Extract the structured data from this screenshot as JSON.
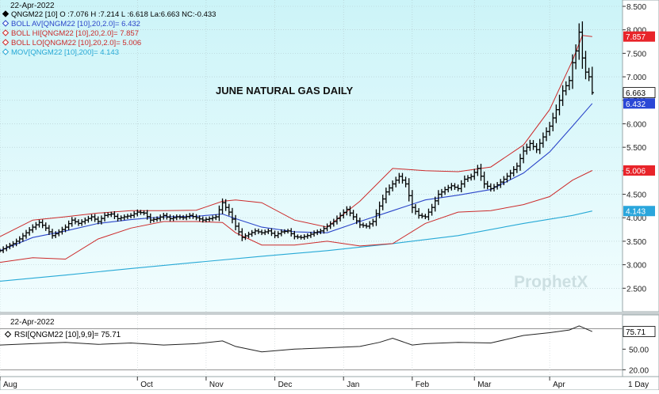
{
  "chart_data": [
    {
      "type": "candlestick",
      "title": "JUNE NATURAL GAS DAILY",
      "date": "22-Apr-2022",
      "quote": {
        "label": "QNGM22 [10] O :7.076 H :7.214 L :6.618 La:6.663 NC:-0.433",
        "open": 7.076,
        "high": 7.214,
        "low": 6.618,
        "last": 6.663,
        "net_change": -0.433
      },
      "legend": [
        {
          "name": "QNGM22 [10] O :7.076 H :7.214 L :6.618 La:6.663 NC:-0.433",
          "color": "#000000",
          "marker": "diamond-filled"
        },
        {
          "name": "BOLL AV[QNGM22 [10],20,2.0]= 6.432",
          "color": "#2b45c9",
          "marker": "diamond-open"
        },
        {
          "name": "BOLL HI[QNGM22 [10],20,2.0]= 7.857",
          "color": "#cc2a2a",
          "marker": "diamond-open"
        },
        {
          "name": "BOLL LO[QNGM22 [10],20,2.0]= 5.006",
          "color": "#cc2a2a",
          "marker": "diamond-open"
        },
        {
          "name": "MOV[QNGM22 [10],200]= 4.143",
          "color": "#26a9d6",
          "marker": "diamond-open"
        }
      ],
      "ylim": [
        2.0,
        8.5
      ],
      "yticks": [
        "8.500",
        "8.000",
        "7.500",
        "7.000",
        "6.500",
        "6.000",
        "5.500",
        "5.000",
        "4.500",
        "4.000",
        "3.500",
        "3.000",
        "2.500"
      ],
      "price_tags": [
        {
          "label": "7.857",
          "value": 7.857,
          "color": "#e8242a"
        },
        {
          "label": "6.663",
          "value": 6.663,
          "color": "#ffffff"
        },
        {
          "label": "6.432",
          "value": 6.432,
          "color": "#2a47d6"
        },
        {
          "label": "5.006",
          "value": 5.006,
          "color": "#e8242a"
        },
        {
          "label": "4.143",
          "value": 4.143,
          "color": "#2aa6dc"
        }
      ],
      "x_months": [
        {
          "label": "Aug",
          "x": 0
        },
        {
          "label": "Oct",
          "x": 42
        },
        {
          "label": "Nov",
          "x": 63
        },
        {
          "label": "Dec",
          "x": 84
        },
        {
          "label": "Jan",
          "x": 105
        },
        {
          "label": "Feb",
          "x": 126
        },
        {
          "label": "Mar",
          "x": 145
        },
        {
          "label": "Apr",
          "x": 168
        }
      ],
      "x_period": "1 Day",
      "xlim": [
        0,
        186
      ],
      "close_series": [
        [
          0,
          3.3
        ],
        [
          2,
          3.38
        ],
        [
          4,
          3.45
        ],
        [
          6,
          3.55
        ],
        [
          8,
          3.68
        ],
        [
          10,
          3.8
        ],
        [
          12,
          3.9
        ],
        [
          14,
          3.78
        ],
        [
          16,
          3.62
        ],
        [
          18,
          3.7
        ],
        [
          20,
          3.8
        ],
        [
          22,
          3.95
        ],
        [
          24,
          3.88
        ],
        [
          26,
          3.95
        ],
        [
          28,
          4.02
        ],
        [
          30,
          3.92
        ],
        [
          32,
          4.05
        ],
        [
          34,
          4.08
        ],
        [
          36,
          3.98
        ],
        [
          38,
          4.02
        ],
        [
          40,
          4.05
        ],
        [
          42,
          4.12
        ],
        [
          44,
          4.1
        ],
        [
          46,
          3.95
        ],
        [
          48,
          3.98
        ],
        [
          50,
          4.05
        ],
        [
          52,
          3.98
        ],
        [
          54,
          4.02
        ],
        [
          56,
          4.0
        ],
        [
          58,
          4.05
        ],
        [
          60,
          4.0
        ],
        [
          62,
          3.95
        ],
        [
          64,
          3.98
        ],
        [
          66,
          4.02
        ],
        [
          68,
          4.32
        ],
        [
          70,
          4.12
        ],
        [
          72,
          3.82
        ],
        [
          74,
          3.58
        ],
        [
          76,
          3.65
        ],
        [
          78,
          3.72
        ],
        [
          80,
          3.68
        ],
        [
          82,
          3.72
        ],
        [
          84,
          3.62
        ],
        [
          86,
          3.7
        ],
        [
          88,
          3.72
        ],
        [
          90,
          3.6
        ],
        [
          92,
          3.58
        ],
        [
          94,
          3.62
        ],
        [
          96,
          3.68
        ],
        [
          98,
          3.72
        ],
        [
          100,
          3.82
        ],
        [
          102,
          3.92
        ],
        [
          104,
          4.05
        ],
        [
          106,
          4.18
        ],
        [
          108,
          4.02
        ],
        [
          110,
          3.85
        ],
        [
          112,
          3.82
        ],
        [
          114,
          3.92
        ],
        [
          116,
          4.25
        ],
        [
          118,
          4.55
        ],
        [
          120,
          4.72
        ],
        [
          122,
          4.88
        ],
        [
          124,
          4.72
        ],
        [
          126,
          4.22
        ],
        [
          128,
          4.05
        ],
        [
          130,
          4.02
        ],
        [
          132,
          4.22
        ],
        [
          134,
          4.5
        ],
        [
          136,
          4.6
        ],
        [
          138,
          4.68
        ],
        [
          140,
          4.62
        ],
        [
          142,
          4.82
        ],
        [
          144,
          4.88
        ],
        [
          146,
          5.05
        ],
        [
          148,
          4.72
        ],
        [
          150,
          4.62
        ],
        [
          152,
          4.7
        ],
        [
          154,
          4.82
        ],
        [
          156,
          4.95
        ],
        [
          158,
          5.1
        ],
        [
          160,
          5.42
        ],
        [
          162,
          5.58
        ],
        [
          164,
          5.45
        ],
        [
          166,
          5.72
        ],
        [
          168,
          5.95
        ],
        [
          170,
          6.3
        ],
        [
          172,
          6.7
        ],
        [
          174,
          6.92
        ],
        [
          175,
          7.3
        ],
        [
          176,
          7.55
        ],
        [
          177,
          7.95
        ],
        [
          178,
          7.4
        ],
        [
          179,
          7.1
        ],
        [
          180,
          7.0
        ],
        [
          181,
          6.663
        ]
      ],
      "boll_av_series": [
        [
          0,
          3.3
        ],
        [
          10,
          3.58
        ],
        [
          20,
          3.72
        ],
        [
          30,
          3.88
        ],
        [
          40,
          3.96
        ],
        [
          50,
          4.02
        ],
        [
          60,
          4.03
        ],
        [
          68,
          4.08
        ],
        [
          72,
          3.98
        ],
        [
          80,
          3.8
        ],
        [
          90,
          3.7
        ],
        [
          100,
          3.68
        ],
        [
          110,
          3.92
        ],
        [
          120,
          4.15
        ],
        [
          130,
          4.38
        ],
        [
          140,
          4.48
        ],
        [
          150,
          4.6
        ],
        [
          160,
          4.95
        ],
        [
          168,
          5.4
        ],
        [
          175,
          5.95
        ],
        [
          181,
          6.432
        ]
      ],
      "boll_hi_series": [
        [
          0,
          3.6
        ],
        [
          10,
          3.95
        ],
        [
          20,
          4.02
        ],
        [
          30,
          4.1
        ],
        [
          40,
          4.15
        ],
        [
          50,
          4.15
        ],
        [
          60,
          4.16
        ],
        [
          68,
          4.35
        ],
        [
          72,
          4.38
        ],
        [
          80,
          4.32
        ],
        [
          90,
          3.95
        ],
        [
          100,
          3.8
        ],
        [
          110,
          4.35
        ],
        [
          120,
          5.05
        ],
        [
          130,
          5.0
        ],
        [
          140,
          4.98
        ],
        [
          150,
          5.08
        ],
        [
          160,
          5.55
        ],
        [
          168,
          6.3
        ],
        [
          175,
          7.35
        ],
        [
          178,
          7.88
        ],
        [
          181,
          7.857
        ]
      ],
      "boll_lo_series": [
        [
          0,
          3.05
        ],
        [
          10,
          3.15
        ],
        [
          20,
          3.12
        ],
        [
          30,
          3.55
        ],
        [
          40,
          3.78
        ],
        [
          50,
          3.92
        ],
        [
          60,
          3.92
        ],
        [
          68,
          3.9
        ],
        [
          72,
          3.68
        ],
        [
          80,
          3.42
        ],
        [
          90,
          3.42
        ],
        [
          100,
          3.5
        ],
        [
          110,
          3.4
        ],
        [
          120,
          3.45
        ],
        [
          130,
          3.88
        ],
        [
          140,
          4.12
        ],
        [
          150,
          4.15
        ],
        [
          160,
          4.28
        ],
        [
          168,
          4.45
        ],
        [
          175,
          4.8
        ],
        [
          181,
          5.006
        ]
      ],
      "mov_series": [
        [
          0,
          2.65
        ],
        [
          20,
          2.78
        ],
        [
          40,
          2.92
        ],
        [
          60,
          3.05
        ],
        [
          80,
          3.18
        ],
        [
          100,
          3.3
        ],
        [
          120,
          3.45
        ],
        [
          140,
          3.62
        ],
        [
          160,
          3.88
        ],
        [
          175,
          4.05
        ],
        [
          181,
          4.143
        ]
      ],
      "watermark": "ProphetX"
    },
    {
      "type": "line",
      "title": "",
      "date": "22-Apr-2022",
      "legend": [
        {
          "name": "RSI[QNGM22 [10],9,9]= 75.71",
          "color": "#000000",
          "marker": "diamond-open"
        }
      ],
      "ylim": [
        10,
        100
      ],
      "yticks": [
        "50.00",
        "20.00"
      ],
      "price_tags": [
        {
          "label": "75.71",
          "value": 75.71,
          "color": "#ffffff"
        }
      ],
      "reference_lines": [
        80,
        20
      ],
      "rsi_series": [
        [
          0,
          56
        ],
        [
          10,
          58
        ],
        [
          20,
          60
        ],
        [
          30,
          57
        ],
        [
          40,
          59
        ],
        [
          50,
          56
        ],
        [
          60,
          58
        ],
        [
          68,
          62
        ],
        [
          72,
          54
        ],
        [
          80,
          46
        ],
        [
          90,
          50
        ],
        [
          100,
          52
        ],
        [
          110,
          54
        ],
        [
          116,
          60
        ],
        [
          120,
          66
        ],
        [
          126,
          56
        ],
        [
          130,
          58
        ],
        [
          140,
          60
        ],
        [
          150,
          59
        ],
        [
          160,
          70
        ],
        [
          168,
          74
        ],
        [
          174,
          78
        ],
        [
          177,
          84
        ],
        [
          181,
          75.71
        ]
      ]
    }
  ]
}
